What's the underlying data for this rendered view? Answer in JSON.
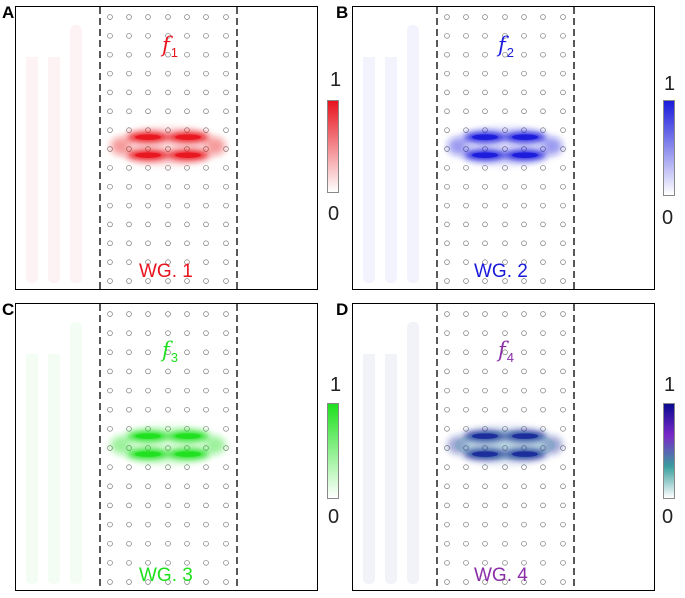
{
  "panels": [
    {
      "letter": "A",
      "freq_symbol": "f",
      "freq_sub": "1",
      "waveguide_label": "WG. 1",
      "color": "#e8141e",
      "colorbar_max": "1",
      "colorbar_min": "0",
      "colorbar_stops": [
        "#e8141e",
        "#ffffff"
      ]
    },
    {
      "letter": "B",
      "freq_symbol": "f",
      "freq_sub": "2",
      "waveguide_label": "WG. 2",
      "color": "#1a1adc",
      "colorbar_max": "1",
      "colorbar_min": "0",
      "colorbar_stops": [
        "#1a1adc",
        "#ffffff"
      ]
    },
    {
      "letter": "C",
      "freq_symbol": "f",
      "freq_sub": "3",
      "waveguide_label": "WG. 3",
      "color": "#1ee01e",
      "colorbar_max": "1",
      "colorbar_min": "0",
      "colorbar_stops": [
        "#1ee01e",
        "#ffffff"
      ]
    },
    {
      "letter": "D",
      "freq_symbol": "f",
      "freq_sub": "4",
      "waveguide_label": "WG. 4",
      "color": "#8b2fa8",
      "field_color": "#1a2a9a",
      "colorbar_max": "1",
      "colorbar_min": "0",
      "colorbar_stops": [
        "#0a0a90",
        "#7a28c8",
        "#3a9e9e",
        "#ffffff"
      ]
    }
  ]
}
